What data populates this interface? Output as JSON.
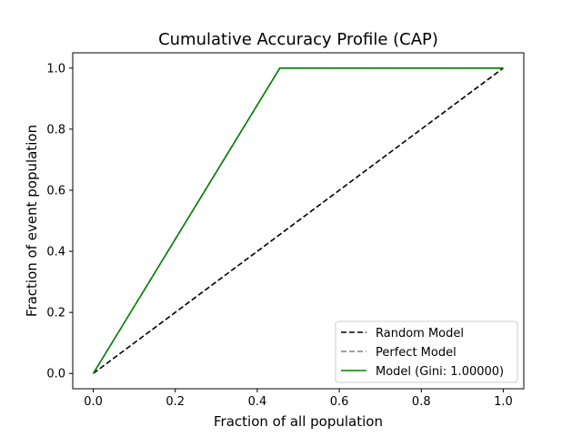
{
  "chart_data": {
    "type": "line",
    "title": "Cumulative Accuracy Profile (CAP)",
    "xlabel": "Fraction of all population",
    "ylabel": "Fraction of event population",
    "xlim": [
      -0.05,
      1.05
    ],
    "ylim": [
      -0.05,
      1.05
    ],
    "xticks": [
      "0.0",
      "0.2",
      "0.4",
      "0.6",
      "0.8",
      "1.0"
    ],
    "yticks": [
      "0.0",
      "0.2",
      "0.4",
      "0.6",
      "0.8",
      "1.0"
    ],
    "grid": false,
    "legend_position": "lower-right",
    "series": [
      {
        "name": "Random Model",
        "color": "#000000",
        "style": "dashed",
        "x": [
          0,
          1
        ],
        "y": [
          0,
          1
        ]
      },
      {
        "name": "Perfect Model",
        "color": "#808080",
        "style": "dashed",
        "x": [
          0,
          0.455,
          1
        ],
        "y": [
          0,
          1,
          1
        ]
      },
      {
        "name": "Model (Gini: 1.00000)",
        "color": "#008000",
        "style": "solid",
        "x": [
          0,
          0.455,
          1
        ],
        "y": [
          0,
          1,
          1
        ]
      }
    ]
  }
}
